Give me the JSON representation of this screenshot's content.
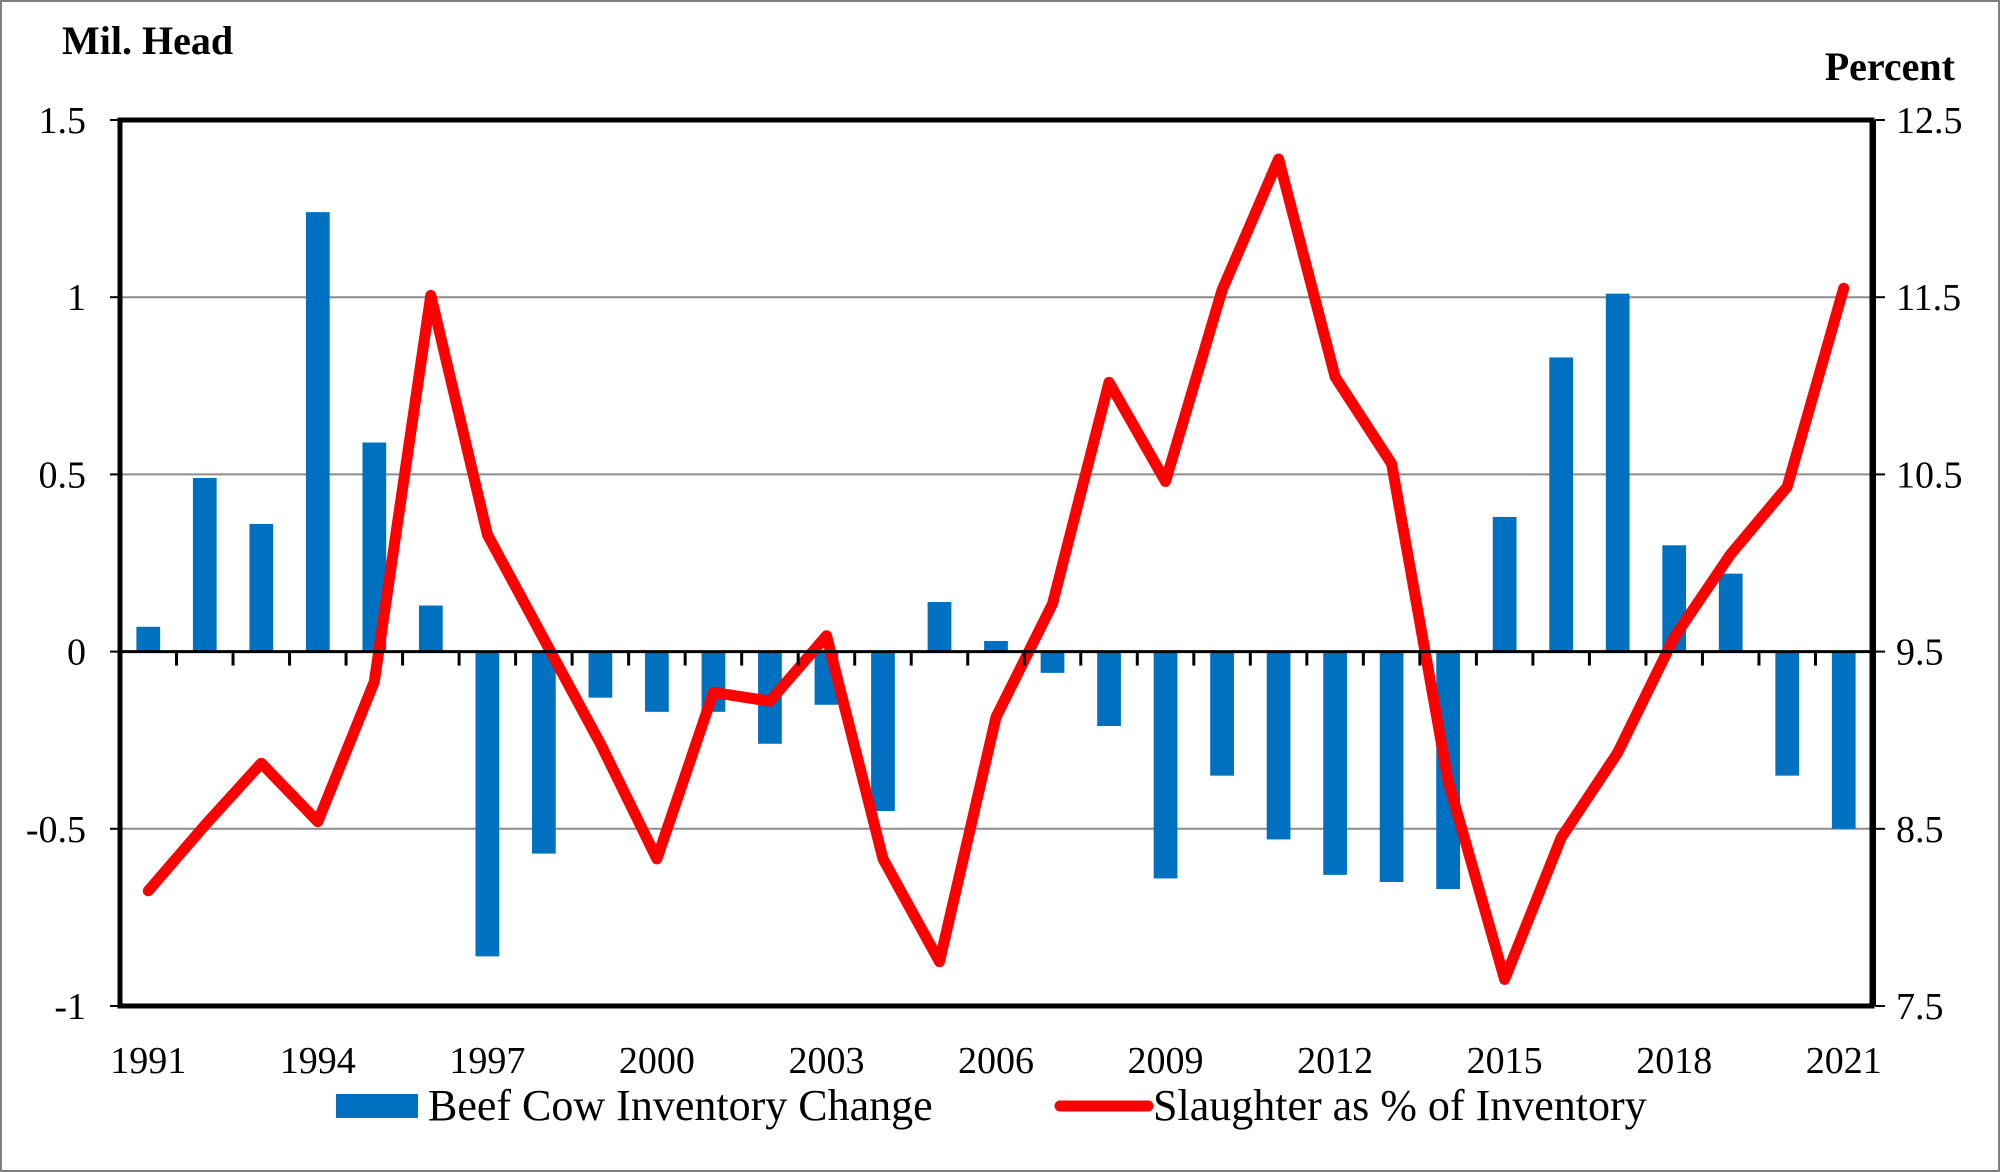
{
  "chart_data": {
    "type": "bar+line",
    "title": "",
    "left_axis_label": "Mil. Head",
    "right_axis_label": "Percent",
    "left_ylim": [
      -1,
      1.5
    ],
    "right_ylim": [
      7.5,
      12.5
    ],
    "left_ticks": [
      "1.5",
      "1",
      "0.5",
      "0",
      "-0.5",
      "-1"
    ],
    "right_ticks": [
      "12.5",
      "11.5",
      "10.5",
      "9.5",
      "8.5",
      "7.5"
    ],
    "x": [
      1991,
      1992,
      1993,
      1994,
      1995,
      1996,
      1997,
      1998,
      1999,
      2000,
      2001,
      2002,
      2003,
      2004,
      2005,
      2006,
      2007,
      2008,
      2009,
      2010,
      2011,
      2012,
      2013,
      2014,
      2015,
      2016,
      2017,
      2018,
      2019,
      2020,
      2021
    ],
    "x_tick_labels": [
      "1991",
      "1994",
      "1997",
      "2000",
      "2003",
      "2006",
      "2009",
      "2012",
      "2015",
      "2018",
      "2021"
    ],
    "grid": "horizontal",
    "legend_position": "bottom",
    "series": [
      {
        "name": "Beef Cow Inventory Change",
        "type": "bar",
        "axis": "left",
        "color": "#0070c0",
        "values": [
          0.07,
          0.49,
          0.36,
          1.24,
          0.59,
          0.13,
          -0.86,
          -0.57,
          -0.13,
          -0.17,
          -0.17,
          -0.26,
          -0.15,
          -0.45,
          0.14,
          0.03,
          -0.06,
          -0.21,
          -0.64,
          -0.35,
          -0.53,
          -0.63,
          -0.65,
          -0.67,
          0.38,
          0.83,
          1.01,
          0.3,
          0.22,
          -0.35,
          -0.5
        ]
      },
      {
        "name": "Slaughter as % of Inventory",
        "type": "line",
        "axis": "right",
        "color": "#ff0000",
        "values": [
          8.15,
          8.52,
          8.87,
          8.54,
          9.33,
          11.51,
          10.16,
          9.57,
          8.98,
          8.33,
          9.27,
          9.22,
          9.59,
          8.33,
          7.75,
          9.13,
          9.77,
          11.02,
          10.46,
          11.54,
          12.28,
          11.05,
          10.56,
          8.77,
          7.65,
          8.45,
          8.93,
          9.58,
          10.05,
          10.43,
          11.55
        ]
      }
    ]
  }
}
